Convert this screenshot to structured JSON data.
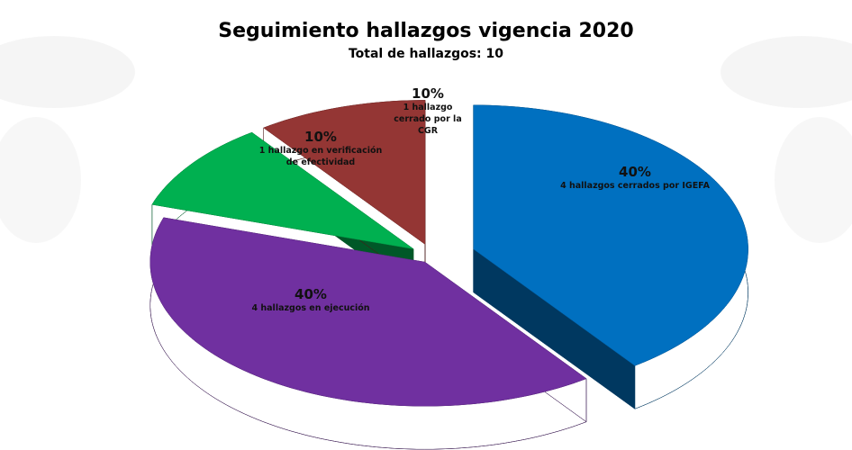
{
  "chart_data": {
    "type": "pie",
    "title": "Seguimiento hallazgos vigencia 2020",
    "subtitle": "Total de hallazgos: 10",
    "categories": [
      "4 hallazgos cerrados por IGEFA",
      "4  hallazgos en ejecución",
      "1 hallazgo en verificación de efectividad",
      "1 hallazgo cerrado por la CGR"
    ],
    "values": [
      40,
      40,
      10,
      10
    ],
    "value_labels": [
      "40%",
      "40%",
      "10%",
      "10%"
    ],
    "colors": [
      "#0070c0",
      "#7030a0",
      "#00b050",
      "#943634"
    ]
  }
}
